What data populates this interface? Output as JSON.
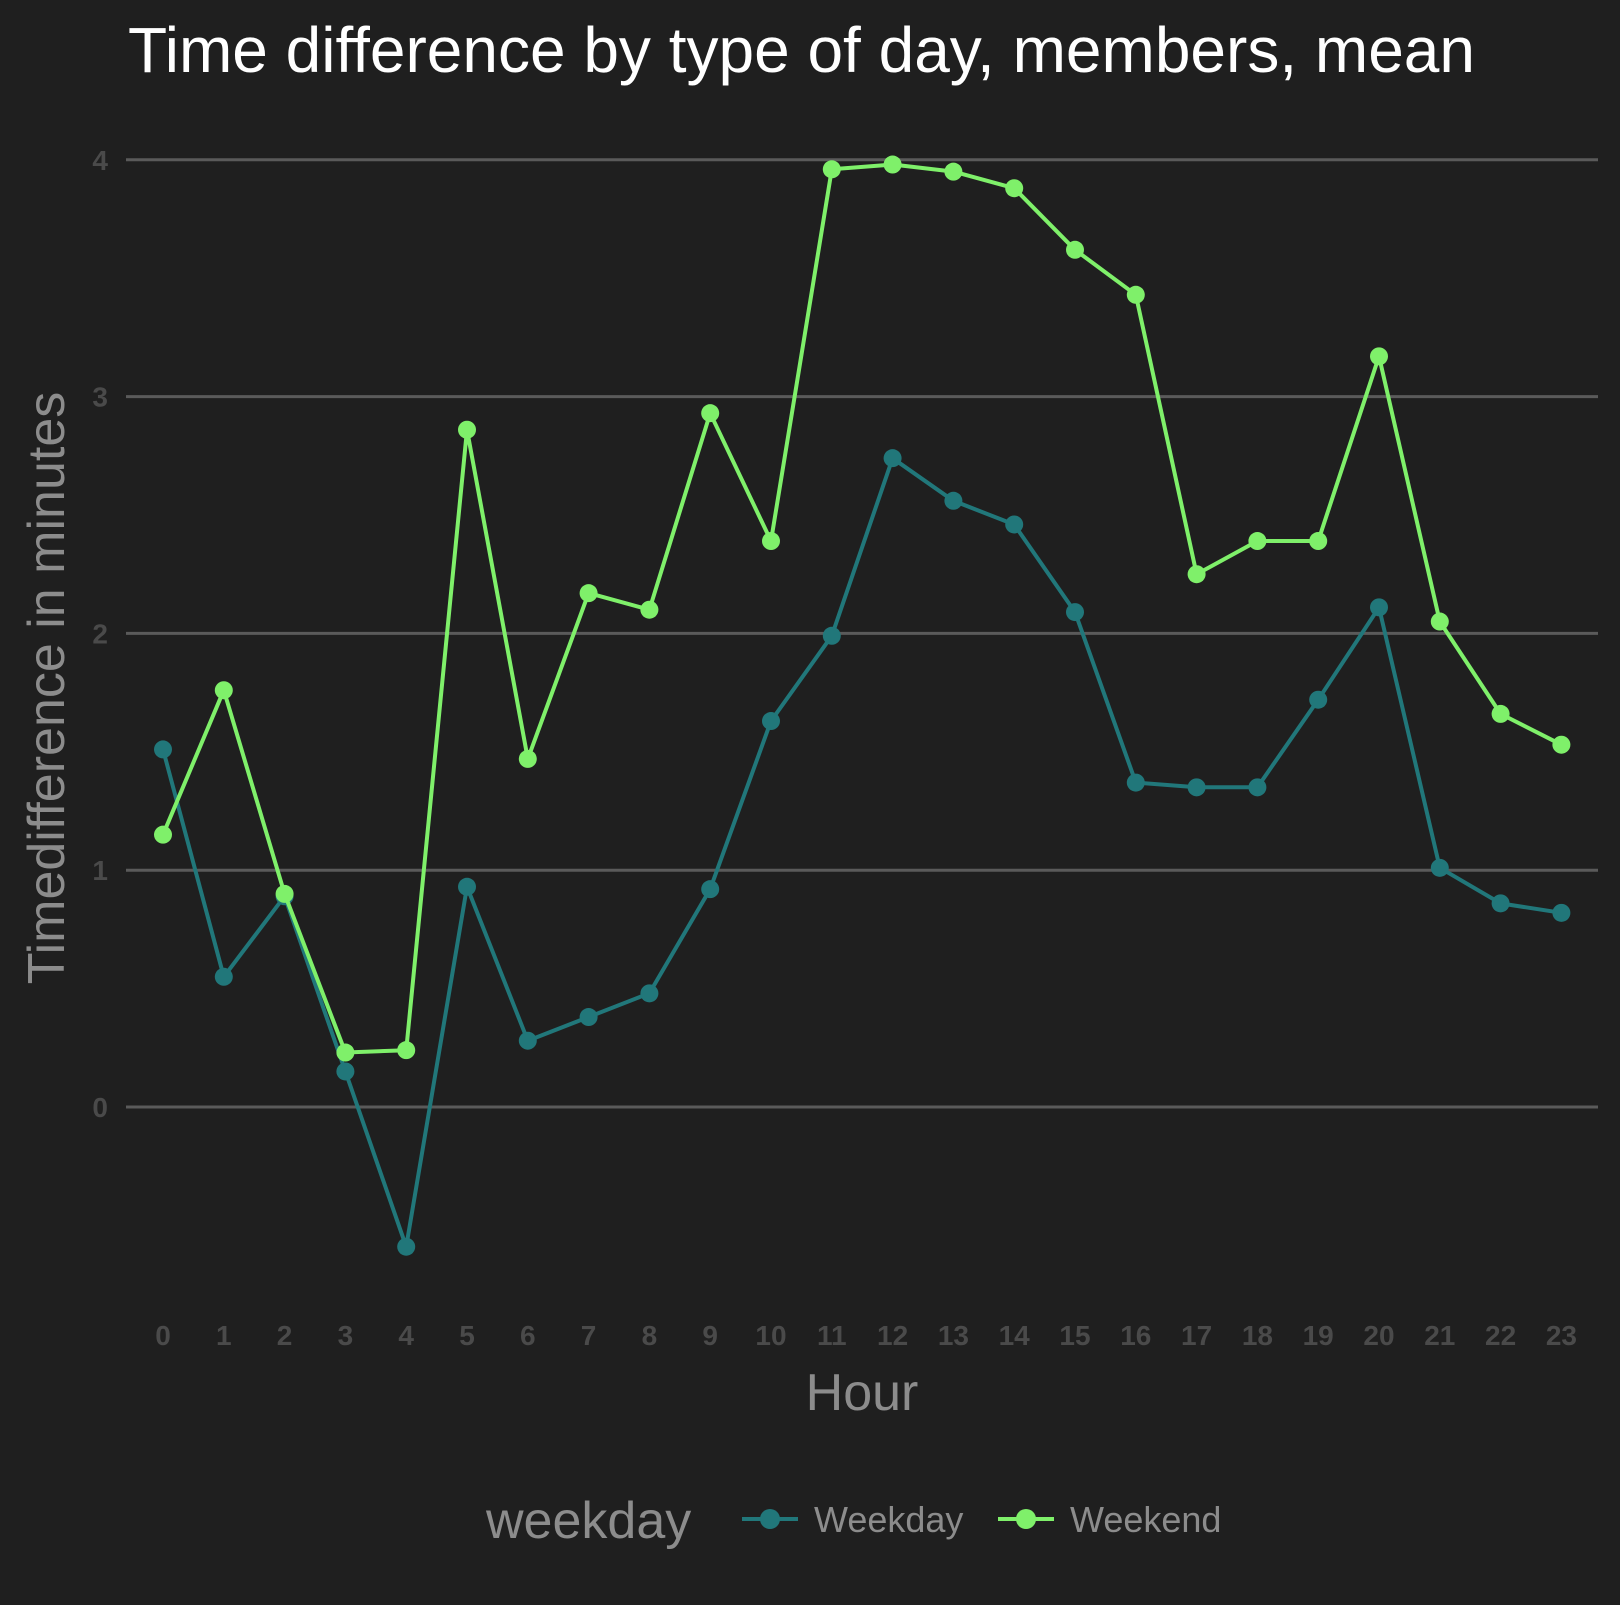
{
  "chart_data": {
    "type": "line",
    "title": "Time difference by type of day, members, mean",
    "xlabel": "Hour",
    "ylabel": "Timedifference in minutes",
    "x": [
      0,
      1,
      2,
      3,
      4,
      5,
      6,
      7,
      8,
      9,
      10,
      11,
      12,
      13,
      14,
      15,
      16,
      17,
      18,
      19,
      20,
      21,
      22,
      23
    ],
    "x_tick_labels": [
      "0",
      "1",
      "2",
      "3",
      "4",
      "5",
      "6",
      "7",
      "8",
      "9",
      "10",
      "11",
      "12",
      "13",
      "14",
      "15",
      "16",
      "17",
      "18",
      "19",
      "20",
      "21",
      "22",
      "23"
    ],
    "y_ticks": [
      0,
      1,
      2,
      3,
      4
    ],
    "y_tick_labels": [
      "0",
      "1",
      "2",
      "3",
      "4"
    ],
    "ylim": [
      -0.83,
      4.25
    ],
    "grid": "horizontal",
    "legend": {
      "title": "weekday",
      "placement": "bottom"
    },
    "series": [
      {
        "name": "Weekday",
        "color": "#21777a",
        "values": [
          1.51,
          0.55,
          0.89,
          0.15,
          -0.59,
          0.93,
          0.28,
          0.38,
          0.48,
          0.92,
          1.63,
          1.99,
          2.74,
          2.56,
          2.46,
          2.09,
          1.37,
          1.35,
          1.35,
          1.72,
          2.11,
          1.01,
          0.86,
          0.82
        ]
      },
      {
        "name": "Weekend",
        "color": "#7ff06a",
        "values": [
          1.15,
          1.76,
          0.9,
          0.23,
          0.24,
          2.86,
          1.47,
          2.17,
          2.1,
          2.93,
          2.39,
          3.96,
          3.98,
          3.95,
          3.88,
          3.62,
          3.43,
          2.25,
          2.39,
          2.39,
          3.17,
          2.05,
          1.66,
          1.53
        ]
      }
    ]
  }
}
